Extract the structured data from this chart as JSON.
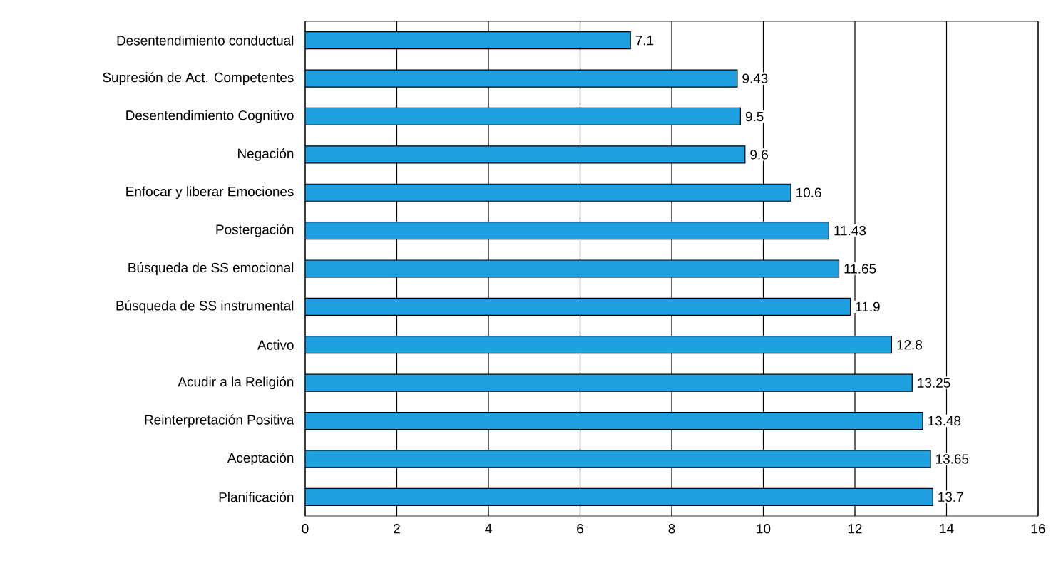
{
  "chart_data": {
    "type": "bar",
    "orientation": "horizontal",
    "categories": [
      "Desentendimiento conductual",
      "Supresión de Act. Competentes",
      "Desentendimiento Cognitivo",
      "Negación",
      "Enfocar y liberar Emociones",
      "Postergación",
      "Búsqueda de SS emocional",
      "Búsqueda de SS instrumental",
      "Activo",
      "Acudir a la Religión",
      "Reinterpretación Positiva",
      "Aceptación",
      "Planificación"
    ],
    "values": [
      7.1,
      9.43,
      9.5,
      9.6,
      10.6,
      11.43,
      11.65,
      11.9,
      12.8,
      13.25,
      13.48,
      13.65,
      13.7
    ],
    "color": "#1ea0e0",
    "data_labels": true,
    "grid": "x",
    "xlim": [
      0,
      16
    ],
    "xticks": [
      0,
      2,
      4,
      6,
      8,
      10,
      12,
      14,
      16
    ]
  }
}
